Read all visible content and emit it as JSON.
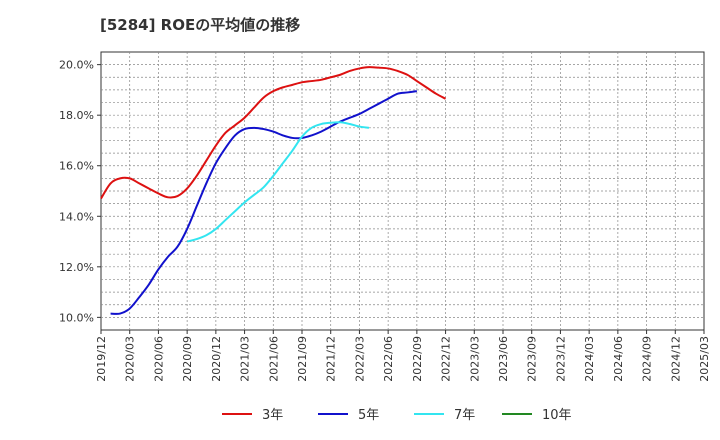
{
  "chart_data": {
    "type": "line",
    "title": "[5284]  ROEの平均値の推移",
    "xlabel": "",
    "ylabel": "",
    "ylim": [
      9.5,
      20.5
    ],
    "yticks": [
      10.0,
      12.0,
      14.0,
      16.0,
      18.0,
      20.0
    ],
    "ytick_labels": [
      "10.0%",
      "12.0%",
      "14.0%",
      "16.0%",
      "18.0%",
      "20.0%"
    ],
    "xticks": [
      "2019/12",
      "2020/03",
      "2020/06",
      "2020/09",
      "2020/12",
      "2021/03",
      "2021/06",
      "2021/09",
      "2021/12",
      "2022/03",
      "2022/06",
      "2022/09",
      "2022/12",
      "2023/03",
      "2023/06",
      "2023/09",
      "2023/12",
      "2024/03",
      "2024/06",
      "2024/09",
      "2024/12",
      "2025/03"
    ],
    "grid": true,
    "legend_position": "bottom",
    "series": [
      {
        "name": "3年",
        "color": "#dd1111",
        "start_index": 0,
        "values": [
          14.7,
          15.3,
          15.5,
          15.5,
          15.3,
          15.1,
          14.9,
          14.75,
          14.8,
          15.1,
          15.6,
          16.2,
          16.8,
          17.3,
          17.6,
          17.9,
          18.3,
          18.7,
          18.95,
          19.1,
          19.2,
          19.3,
          19.35,
          19.4,
          19.5,
          19.6,
          19.75,
          19.85,
          19.9,
          19.88,
          19.85,
          19.75,
          19.6,
          19.35,
          19.1,
          18.85,
          18.65
        ]
      },
      {
        "name": "5年",
        "color": "#1111cc",
        "start_index": 1,
        "values": [
          10.15,
          10.15,
          10.35,
          10.8,
          11.3,
          11.9,
          12.4,
          12.8,
          13.5,
          14.4,
          15.3,
          16.1,
          16.7,
          17.2,
          17.45,
          17.5,
          17.45,
          17.35,
          17.2,
          17.1,
          17.1,
          17.2,
          17.35,
          17.55,
          17.75,
          17.9,
          18.05,
          18.25,
          18.45,
          18.65,
          18.85,
          18.9,
          18.95
        ]
      },
      {
        "name": "7年",
        "color": "#33e5f0",
        "start_index": 9,
        "values": [
          13.0,
          13.1,
          13.25,
          13.5,
          13.85,
          14.2,
          14.55,
          14.85,
          15.15,
          15.6,
          16.1,
          16.6,
          17.15,
          17.5,
          17.65,
          17.7,
          17.72,
          17.65,
          17.55,
          17.5
        ]
      },
      {
        "name": "10年",
        "color": "#228822",
        "start_index": 0,
        "values": []
      }
    ]
  }
}
